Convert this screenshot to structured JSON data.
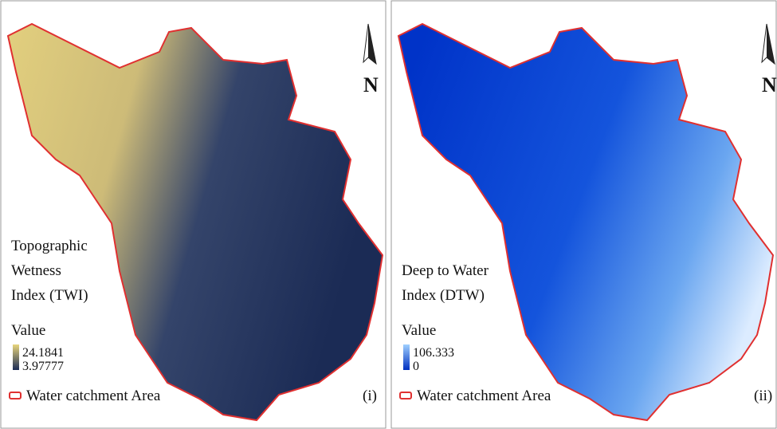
{
  "panels": [
    {
      "title_lines": [
        "Topographic",
        "Wetness",
        "Index (TWI)"
      ],
      "legend_title": "Value",
      "legend_high": "24.1841",
      "legend_low": "3.97777",
      "boundary_label": "Water catchment Area",
      "panel_label": "(i)",
      "north_label": "N"
    },
    {
      "title_lines": [
        "Deep to Water",
        "Index (DTW)"
      ],
      "legend_title": "Value",
      "legend_high": "106.333",
      "legend_low": "0",
      "boundary_label": "Water catchment Area",
      "panel_label": "(ii)",
      "north_label": "N"
    }
  ]
}
